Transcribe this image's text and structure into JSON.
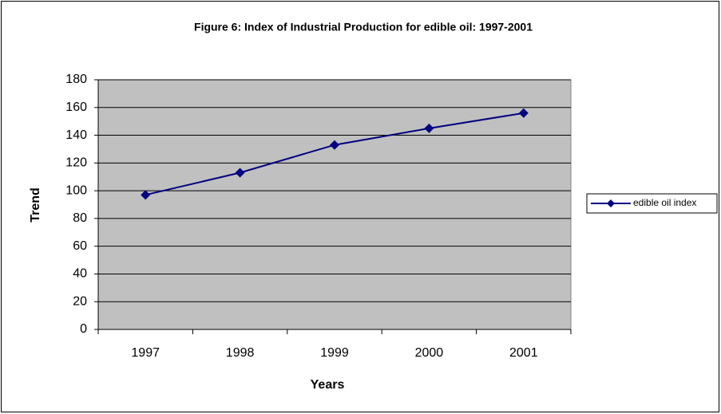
{
  "chart_data": {
    "type": "line",
    "title": "Figure 6: Index of Industrial Production for edible oil: 1997-2001",
    "x_label": "Years",
    "y_label": "Trend",
    "categories": [
      "1997",
      "1998",
      "1999",
      "2000",
      "2001"
    ],
    "series": [
      {
        "name": "edible oil index",
        "color": "#000080",
        "values": [
          97,
          113,
          133,
          145,
          156
        ]
      }
    ],
    "ylim": [
      0,
      180
    ],
    "yticks": [
      0,
      20,
      40,
      60,
      80,
      100,
      120,
      140,
      160,
      180
    ],
    "grid": true,
    "legend": "right"
  }
}
